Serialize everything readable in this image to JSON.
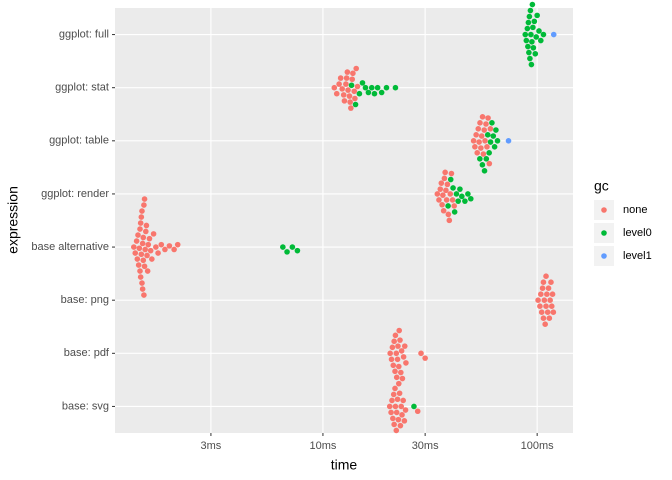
{
  "chart_data": {
    "type": "beeswarm",
    "x_label": "time",
    "y_label": "expression",
    "categories": [
      "base: svg",
      "base: pdf",
      "base: png",
      "base alternative",
      "ggplot: render",
      "ggplot: table",
      "ggplot: stat",
      "ggplot: full"
    ],
    "xlim": [
      1.07,
      147
    ],
    "log_x": true,
    "xticks": [
      {
        "value": 3,
        "label": "3ms"
      },
      {
        "value": 10,
        "label": "10ms"
      },
      {
        "value": 30,
        "label": "30ms"
      },
      {
        "value": 100,
        "label": "100ms"
      }
    ],
    "grid": true,
    "legend_title": "gc",
    "legend_position": "right",
    "series": [
      {
        "name": "none",
        "color": "#F8766D",
        "values": [
          [
            20.5,
            20.8,
            21.0,
            21.2,
            21.4,
            21.5,
            21.7,
            21.8,
            22.0,
            22.1,
            22.3,
            22.5,
            22.6,
            22.8,
            23.0,
            23.2,
            23.4,
            23.7,
            24.0,
            24.3,
            27.7
          ],
          [
            20.6,
            20.9,
            21.1,
            21.3,
            21.5,
            21.7,
            21.8,
            22.0,
            22.1,
            22.3,
            22.4,
            22.6,
            22.7,
            22.9,
            23.1,
            23.3,
            23.5,
            23.8,
            24.1,
            24.4,
            28.7,
            30.0
          ],
          [
            101,
            103,
            104,
            105,
            106,
            107,
            107,
            108,
            109,
            110,
            110,
            111,
            112,
            113,
            114,
            115,
            116,
            117,
            118,
            119
          ],
          [
            1.31,
            1.33,
            1.35,
            1.36,
            1.37,
            1.38,
            1.39,
            1.4,
            1.4,
            1.41,
            1.41,
            1.42,
            1.42,
            1.43,
            1.43,
            1.44,
            1.44,
            1.45,
            1.45,
            1.46,
            1.46,
            1.47,
            1.47,
            1.48,
            1.49,
            1.5,
            1.51,
            1.52,
            1.53,
            1.55,
            1.57,
            1.59,
            1.62,
            1.66,
            1.7,
            1.76,
            1.83,
            1.92,
            2.02,
            2.1
          ],
          [
            34.2,
            34.8,
            35.3,
            35.7,
            36.0,
            36.3,
            36.6,
            36.9,
            37.2,
            37.5,
            37.8,
            38.1,
            38.5,
            38.9,
            39.3,
            39.8,
            40.3,
            41.0
          ],
          [
            50.5,
            51.2,
            51.9,
            52.5,
            53.1,
            53.6,
            54.1,
            54.6,
            55.1,
            55.6,
            56.1,
            56.6,
            57.1,
            57.7,
            58.3,
            59.0,
            59.8,
            60.5
          ],
          [
            11.3,
            11.6,
            11.9,
            12.1,
            12.3,
            12.5,
            12.6,
            12.8,
            12.9,
            13.0,
            13.1,
            13.3,
            13.4,
            13.5,
            13.7,
            13.8,
            14.0,
            14.1,
            14.3,
            14.5
          ],
          []
        ]
      },
      {
        "name": "level0",
        "color": "#00BA38",
        "values": [
          [
            26.6
          ],
          [],
          [],
          [
            6.5,
            6.8,
            7.2,
            7.6
          ],
          [
            38.4,
            39.5,
            40.5,
            41.2,
            42.0,
            42.8,
            43.6,
            44.5,
            46.0,
            47.5,
            49.0
          ],
          [
            54.0,
            55.5,
            56.8,
            57.9,
            58.8,
            59.7,
            60.6,
            61.5,
            62.4,
            63.3,
            64.2,
            65.3
          ],
          [
            13.6,
            14.2,
            14.8,
            15.3,
            15.8,
            16.3,
            16.9,
            17.4,
            18.0,
            18.8,
            19.8,
            21.8
          ],
          [
            88,
            89,
            90,
            90.5,
            91,
            91.5,
            92,
            92.5,
            93,
            93.5,
            94,
            94.5,
            95,
            95.5,
            96,
            97,
            98,
            99,
            100,
            102,
            104,
            107
          ]
        ]
      },
      {
        "name": "level1",
        "color": "#619CFF",
        "values": [
          [],
          [],
          [],
          [],
          [],
          [
            73.5
          ],
          [],
          [
            119.5
          ]
        ]
      }
    ]
  }
}
